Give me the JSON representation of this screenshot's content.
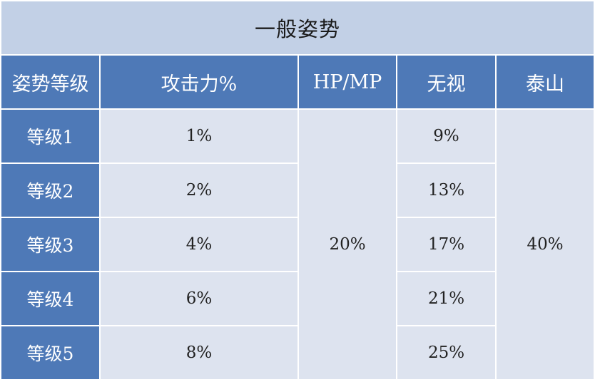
{
  "table": {
    "title": "一般姿势",
    "headers": [
      "姿势等级",
      "攻击力%",
      "HP/MP",
      "无视",
      "泰山"
    ],
    "rows": [
      {
        "level": "等级1",
        "attack": "1%",
        "ignore": "9%"
      },
      {
        "level": "等级2",
        "attack": "2%",
        "ignore": "13%"
      },
      {
        "level": "等级3",
        "attack": "4%",
        "ignore": "17%"
      },
      {
        "level": "等级4",
        "attack": "6%",
        "ignore": "21%"
      },
      {
        "level": "等级5",
        "attack": "8%",
        "ignore": "25%"
      }
    ],
    "hp_mp_merged": "20%",
    "taishan_merged": "40%"
  },
  "colors": {
    "title_bg": "#c2d0e6",
    "header_bg": "#4e79b7",
    "cell_bg": "#dde3ef",
    "border": "#ffffff"
  }
}
